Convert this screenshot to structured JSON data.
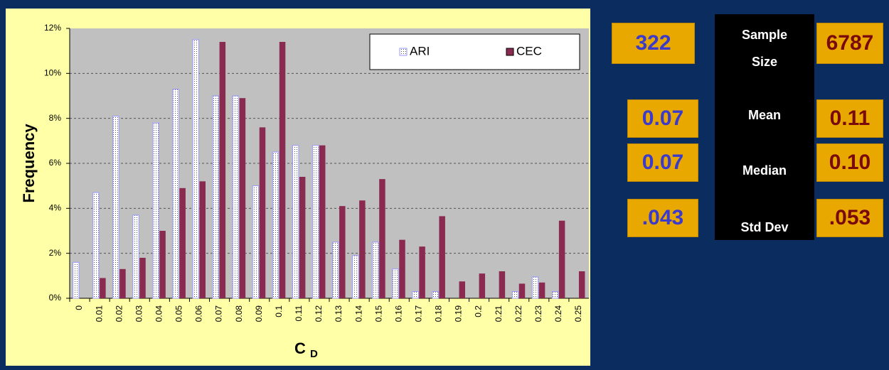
{
  "chart_data": {
    "type": "bar",
    "ylabel": "Frequency",
    "xlabel": "C",
    "xlabel_sub": "D",
    "categories": [
      "0",
      "0.01",
      "0.02",
      "0.03",
      "0.04",
      "0.05",
      "0.06",
      "0.07",
      "0.08",
      "0.09",
      "0.1",
      "0.11",
      "0.12",
      "0.13",
      "0.14",
      "0.15",
      "0.16",
      "0.17",
      "0.18",
      "0.19",
      "0.2",
      "0.21",
      "0.22",
      "0.23",
      "0.24",
      "0.25"
    ],
    "series": [
      {
        "name": "ARI",
        "color": "#9999ff",
        "values": [
          1.6,
          4.7,
          8.1,
          3.7,
          7.8,
          9.3,
          11.5,
          9.0,
          9.0,
          5.0,
          6.5,
          6.8,
          6.8,
          2.5,
          1.9,
          2.5,
          1.3,
          0.3,
          0.3,
          0,
          0,
          0,
          0.3,
          0.95,
          0.3,
          0
        ]
      },
      {
        "name": "CEC",
        "color": "#8b2a50",
        "values": [
          0,
          0.9,
          1.3,
          1.8,
          3.0,
          4.9,
          5.2,
          11.4,
          8.9,
          7.6,
          11.4,
          5.4,
          6.8,
          4.1,
          4.35,
          5.3,
          2.6,
          2.3,
          3.65,
          0.75,
          1.1,
          1.2,
          0.65,
          0.7,
          3.45,
          1.2
        ]
      }
    ],
    "ylim": [
      0,
      12
    ],
    "yticks": [
      {
        "value": 0,
        "label": "0%"
      },
      {
        "value": 2,
        "label": "2%"
      },
      {
        "value": 4,
        "label": "4%"
      },
      {
        "value": 6,
        "label": "6%"
      },
      {
        "value": 8,
        "label": "8%"
      },
      {
        "value": 10,
        "label": "10%"
      },
      {
        "value": 12,
        "label": "12%"
      }
    ],
    "grid": true,
    "legend": "upper right"
  },
  "stats": {
    "labels": [
      "Sample Size",
      "Mean",
      "Median",
      "Std Dev"
    ],
    "ari": [
      "322",
      "0.07",
      "0.07",
      ".043"
    ],
    "cec": [
      "6787",
      "0.11",
      "0.10",
      ".053"
    ]
  }
}
